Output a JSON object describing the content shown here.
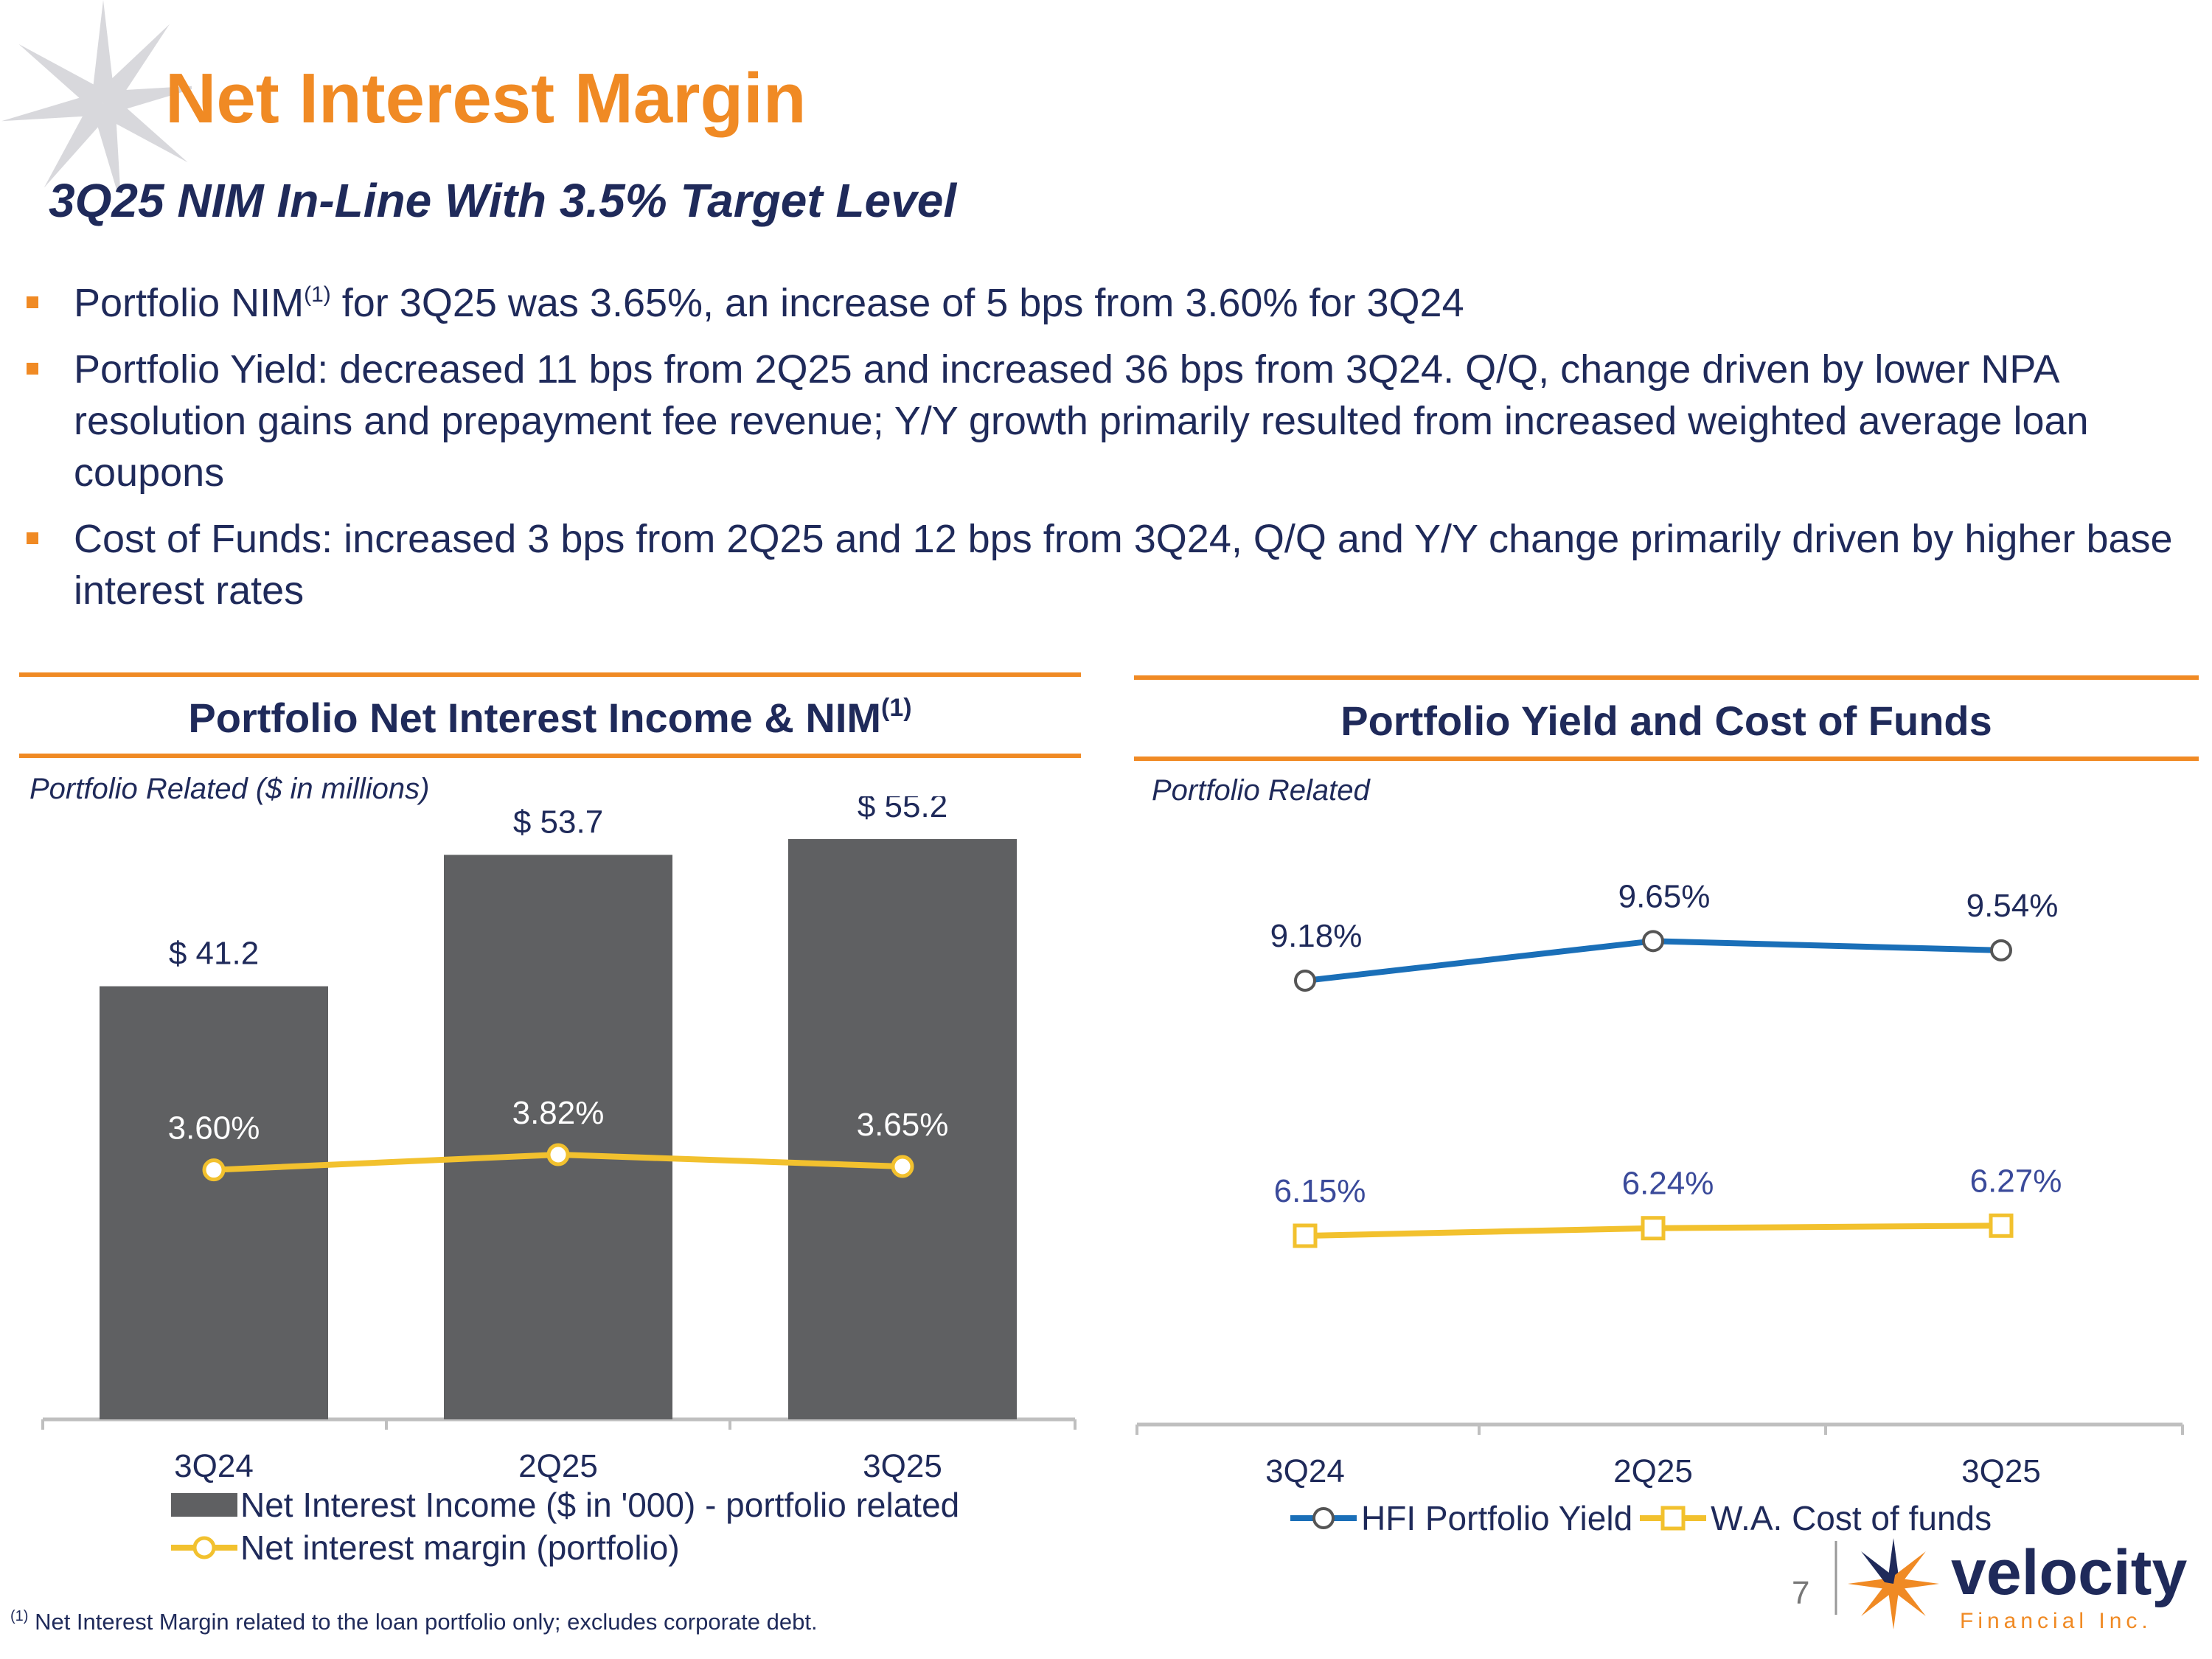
{
  "header": {
    "title": "Net Interest Margin",
    "subtitle": "3Q25 NIM In-Line With 3.5% Target Level"
  },
  "bullets": [
    {
      "pre": "Portfolio NIM",
      "sup": "(1)",
      "post": " for 3Q25 was 3.65%, an increase of 5 bps from 3.60% for 3Q24"
    },
    {
      "text": "Portfolio Yield: decreased 11 bps from 2Q25 and increased 36 bps from 3Q24. Q/Q, change driven by lower NPA resolution gains and prepayment fee revenue; Y/Y growth primarily resulted from increased weighted average loan coupons"
    },
    {
      "text": "Cost of Funds: increased 3 bps from 2Q25 and 12 bps from 3Q24, Q/Q and Y/Y change primarily driven by higher base interest rates"
    }
  ],
  "left_panel": {
    "title": "Portfolio Net Interest Income & NIM",
    "title_sup": "(1)",
    "label": "Portfolio Related ($ in millions)"
  },
  "right_panel": {
    "title": "Portfolio Yield and Cost of Funds",
    "label": "Portfolio Related"
  },
  "colors": {
    "accent": "#f08a24",
    "navy": "#1f2a5a",
    "bar": "#5f6062",
    "nim_line": "#f2c12e",
    "yield_line": "#1a6fb8",
    "cost_line": "#f2c12e"
  },
  "chart_data": [
    {
      "type": "bar",
      "categories": [
        "3Q24",
        "2Q25",
        "3Q25"
      ],
      "series": [
        {
          "name": "Net Interest Income ($ in '000) - portfolio related",
          "kind": "bar",
          "values": [
            41.2,
            53.7,
            55.2
          ],
          "labels": [
            "$ 41.2",
            "$ 53.7",
            "$ 55.2"
          ]
        },
        {
          "name": "Net interest margin (portfolio)",
          "kind": "line",
          "values": [
            3.6,
            3.82,
            3.65
          ],
          "labels": [
            "3.60%",
            "3.82%",
            "3.65%"
          ]
        }
      ],
      "ylim": [
        0,
        60
      ],
      "nim_ylim": [
        0,
        8.3
      ],
      "legend_position": "bottom"
    },
    {
      "type": "line",
      "categories": [
        "3Q24",
        "2Q25",
        "3Q25"
      ],
      "series": [
        {
          "name": "HFI Portfolio Yield",
          "values": [
            9.18,
            9.65,
            9.54
          ],
          "labels": [
            "9.18%",
            "9.65%",
            "9.54%"
          ],
          "marker": "circle"
        },
        {
          "name": "W.A. Cost of funds",
          "values": [
            6.15,
            6.24,
            6.27
          ],
          "labels": [
            "6.15%",
            "6.24%",
            "6.27%"
          ],
          "marker": "square"
        }
      ],
      "ylim": [
        4,
        11
      ],
      "legend_position": "bottom"
    }
  ],
  "footer": {
    "footnote_sup": "(1)",
    "footnote": " Net Interest Margin related to the loan portfolio only; excludes corporate debt.",
    "page_number": "7",
    "logo_text": "velocity",
    "logo_sub": "Financial Inc."
  }
}
